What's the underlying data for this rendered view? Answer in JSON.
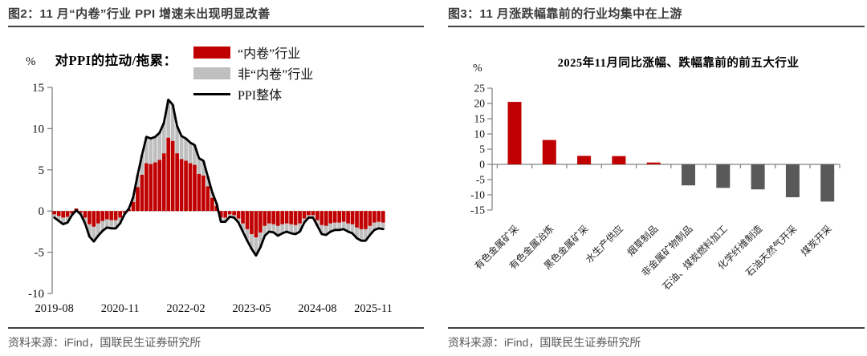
{
  "colors": {
    "red": "#C00000",
    "gray": "#BFBFBF",
    "dark": "#595959",
    "line_black": "#000000",
    "axis": "#808080",
    "zero_dash": "#B3B3B3"
  },
  "left_panel": {
    "title": "图2：11 月“内卷”行业 PPI 增速未出现明显改善",
    "source": "资料来源：iFind，国联民生证券研究所"
  },
  "right_panel": {
    "title": "图3：11 月涨跌幅靠前的行业均集中在上游",
    "source": "资料来源：iFind，国联民生证券研究所"
  },
  "chart_data": [
    {
      "type": "bar",
      "variant": "stacked-bars-with-line",
      "unit": "%",
      "annotation": "对PPI的拉动/拖累：",
      "legend_position": "top-right",
      "ylim": [
        -10,
        15
      ],
      "y_ticks": [
        15,
        10,
        5,
        0,
        -5,
        -10
      ],
      "x_tick_labels": [
        "2019-08",
        "2020-11",
        "2022-02",
        "2023-05",
        "2024-08",
        "2025-11"
      ],
      "x_tick_indices": [
        0,
        15,
        30,
        45,
        60,
        75
      ],
      "x": [
        "2019-08",
        "2019-09",
        "2019-10",
        "2019-11",
        "2019-12",
        "2020-01",
        "2020-02",
        "2020-03",
        "2020-04",
        "2020-05",
        "2020-06",
        "2020-07",
        "2020-08",
        "2020-09",
        "2020-10",
        "2020-11",
        "2020-12",
        "2021-01",
        "2021-02",
        "2021-03",
        "2021-04",
        "2021-05",
        "2021-06",
        "2021-07",
        "2021-08",
        "2021-09",
        "2021-10",
        "2021-11",
        "2021-12",
        "2022-01",
        "2022-02",
        "2022-03",
        "2022-04",
        "2022-05",
        "2022-06",
        "2022-07",
        "2022-08",
        "2022-09",
        "2022-10",
        "2022-11",
        "2022-12",
        "2023-01",
        "2023-02",
        "2023-03",
        "2023-04",
        "2023-05",
        "2023-06",
        "2023-07",
        "2023-08",
        "2023-09",
        "2023-10",
        "2023-11",
        "2023-12",
        "2024-01",
        "2024-02",
        "2024-03",
        "2024-04",
        "2024-05",
        "2024-06",
        "2024-07",
        "2024-08",
        "2024-09",
        "2024-10",
        "2024-11",
        "2024-12",
        "2025-01",
        "2025-02",
        "2025-03",
        "2025-04",
        "2025-05",
        "2025-06",
        "2025-07",
        "2025-08",
        "2025-09",
        "2025-10",
        "2025-11"
      ],
      "series": [
        {
          "name": "“内卷”行业",
          "color_key": "red",
          "values": [
            -0.4,
            -0.6,
            -0.8,
            -0.7,
            -0.3,
            0.3,
            -0.2,
            -0.8,
            -1.6,
            -1.9,
            -1.5,
            -1.2,
            -1.0,
            -1.1,
            -1.1,
            -0.8,
            -0.2,
            0.2,
            1.1,
            2.9,
            4.4,
            5.8,
            5.7,
            5.9,
            6.2,
            7.0,
            8.9,
            8.5,
            7.0,
            6.3,
            6.1,
            5.8,
            5.6,
            4.5,
            4.3,
            3.0,
            1.6,
            0.6,
            -0.8,
            -0.8,
            -0.4,
            -0.5,
            -0.9,
            -1.5,
            -2.2,
            -2.8,
            -3.2,
            -2.6,
            -1.8,
            -1.5,
            -1.6,
            -1.8,
            -1.6,
            -1.5,
            -1.6,
            -1.7,
            -1.5,
            -0.9,
            -0.5,
            -0.5,
            -1.1,
            -1.7,
            -1.8,
            -1.5,
            -1.4,
            -1.4,
            -1.3,
            -1.5,
            -1.6,
            -2.0,
            -2.2,
            -2.2,
            -1.8,
            -1.4,
            -1.3,
            -1.4
          ]
        },
        {
          "name": "非“内卷”行业",
          "color_key": "gray",
          "values": [
            -0.4,
            -0.6,
            -0.8,
            -0.7,
            -0.2,
            -0.2,
            -0.2,
            -0.7,
            -1.5,
            -1.8,
            -1.5,
            -1.2,
            -1.0,
            -1.0,
            -1.0,
            -0.7,
            -0.2,
            0.1,
            0.6,
            1.5,
            2.4,
            3.2,
            3.1,
            3.1,
            3.3,
            3.7,
            4.6,
            4.4,
            3.3,
            2.8,
            2.7,
            2.5,
            2.4,
            1.9,
            1.8,
            1.2,
            0.7,
            0.3,
            -0.5,
            -0.5,
            -0.3,
            -0.3,
            -0.5,
            -1.0,
            -1.4,
            -1.8,
            -2.2,
            -1.8,
            -1.2,
            -1.0,
            -1.0,
            -1.2,
            -1.1,
            -1.0,
            -1.1,
            -1.1,
            -1.0,
            -0.5,
            -0.3,
            -0.3,
            -0.7,
            -1.1,
            -1.1,
            -1.0,
            -0.9,
            -0.9,
            -0.9,
            -1.0,
            -1.1,
            -1.3,
            -1.4,
            -1.4,
            -1.1,
            -0.9,
            -0.8,
            -0.8
          ]
        }
      ],
      "line": {
        "name": "PPI整体",
        "color_key": "line_black",
        "values": [
          -0.8,
          -1.2,
          -1.6,
          -1.4,
          -0.5,
          0.1,
          -0.4,
          -1.5,
          -3.1,
          -3.7,
          -3.0,
          -2.4,
          -2.0,
          -2.1,
          -2.1,
          -1.5,
          -0.4,
          0.3,
          1.7,
          4.4,
          6.8,
          9.0,
          8.8,
          9.0,
          9.5,
          10.7,
          13.5,
          12.9,
          10.3,
          9.1,
          8.8,
          8.3,
          8.0,
          6.4,
          6.1,
          4.2,
          2.3,
          0.9,
          -1.3,
          -1.3,
          -0.7,
          -0.8,
          -1.4,
          -2.5,
          -3.6,
          -4.6,
          -5.4,
          -4.4,
          -3.0,
          -2.5,
          -2.6,
          -3.0,
          -2.7,
          -2.5,
          -2.7,
          -2.8,
          -2.5,
          -1.4,
          -0.8,
          -0.8,
          -1.8,
          -2.8,
          -2.9,
          -2.5,
          -2.3,
          -2.3,
          -2.2,
          -2.5,
          -2.7,
          -3.3,
          -3.6,
          -3.6,
          -2.9,
          -2.3,
          -2.1,
          -2.2
        ]
      }
    },
    {
      "type": "bar",
      "title": "2025年11月同比涨幅、跌幅靠前的前五大行业",
      "unit": "%",
      "ylim": [
        -15,
        25
      ],
      "y_ticks": [
        25,
        20,
        15,
        10,
        5,
        0,
        -5,
        -10,
        -15
      ],
      "categories": [
        "有色金属矿采",
        "有色金属冶炼",
        "黑色金属矿采",
        "水生产供应",
        "烟草制品",
        "非金属矿物制品",
        "石油、煤炭燃料加工",
        "化学纤维制造",
        "石油天然气开采",
        "煤炭开采"
      ],
      "values": [
        20.5,
        8.0,
        2.8,
        2.7,
        0.6,
        -6.9,
        -7.7,
        -8.2,
        -10.8,
        -12.2
      ],
      "positive_color_key": "red",
      "negative_color_key": "dark"
    }
  ]
}
